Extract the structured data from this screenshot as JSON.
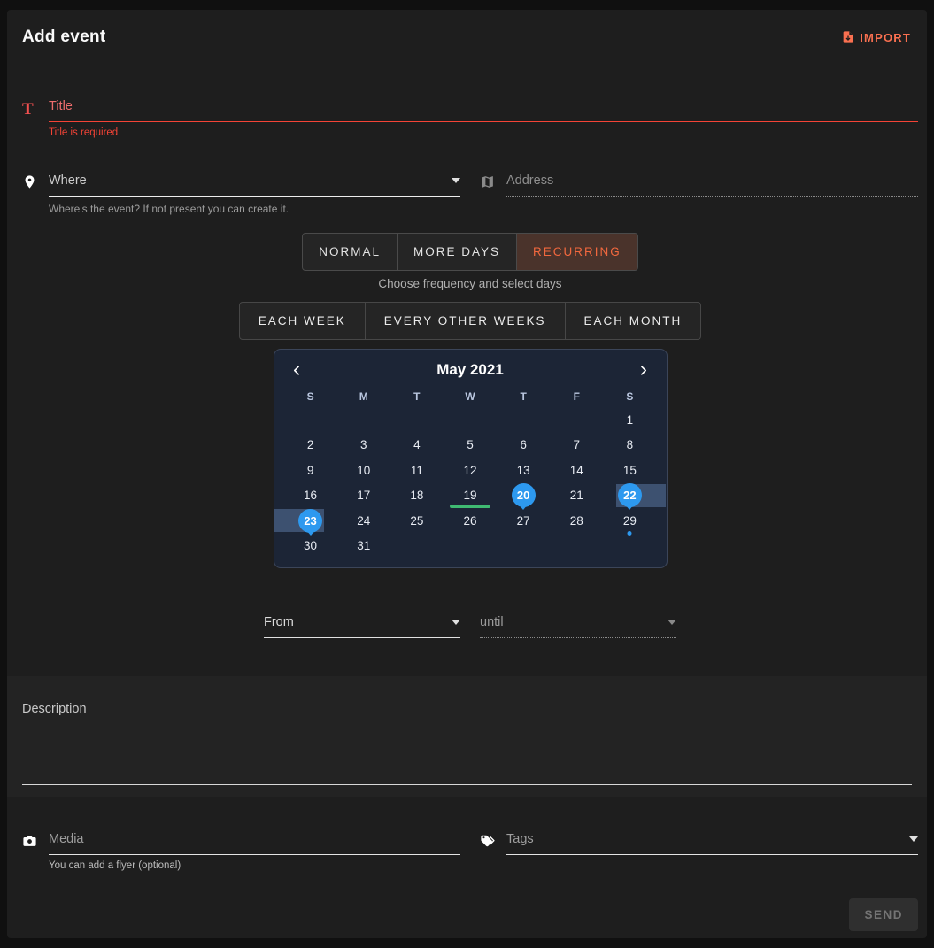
{
  "header": {
    "title": "Add event",
    "import_label": "IMPORT"
  },
  "title_field": {
    "placeholder": "Title",
    "error": "Title is required"
  },
  "where_field": {
    "placeholder": "Where",
    "helper": "Where's the event? If not present you can create it."
  },
  "address_field": {
    "placeholder": "Address"
  },
  "mode_tabs": {
    "items": [
      {
        "label": "NORMAL",
        "selected": false
      },
      {
        "label": "MORE DAYS",
        "selected": false
      },
      {
        "label": "RECURRING",
        "selected": true
      }
    ]
  },
  "frequency": {
    "caption": "Choose frequency and select days",
    "options": [
      "EACH WEEK",
      "EVERY OTHER WEEKS",
      "EACH MONTH"
    ]
  },
  "calendar": {
    "month_label": "May 2021",
    "weekdays": [
      "S",
      "M",
      "T",
      "W",
      "T",
      "F",
      "S"
    ],
    "weeks": [
      [
        {
          "d": ""
        },
        {
          "d": ""
        },
        {
          "d": ""
        },
        {
          "d": ""
        },
        {
          "d": ""
        },
        {
          "d": ""
        },
        {
          "d": "1"
        }
      ],
      [
        {
          "d": "2"
        },
        {
          "d": "3"
        },
        {
          "d": "4"
        },
        {
          "d": "5"
        },
        {
          "d": "6"
        },
        {
          "d": "7"
        },
        {
          "d": "8"
        }
      ],
      [
        {
          "d": "9"
        },
        {
          "d": "10"
        },
        {
          "d": "11"
        },
        {
          "d": "12"
        },
        {
          "d": "13"
        },
        {
          "d": "14"
        },
        {
          "d": "15"
        }
      ],
      [
        {
          "d": "16"
        },
        {
          "d": "17"
        },
        {
          "d": "18"
        },
        {
          "d": "19",
          "marker": "green-underline"
        },
        {
          "d": "20",
          "state": "selected"
        },
        {
          "d": "21"
        },
        {
          "d": "22",
          "state": "selected",
          "band": "right"
        }
      ],
      [
        {
          "d": "23",
          "state": "selected",
          "band": "left"
        },
        {
          "d": "24"
        },
        {
          "d": "25"
        },
        {
          "d": "26"
        },
        {
          "d": "27"
        },
        {
          "d": "28"
        },
        {
          "d": "29",
          "marker": "dot"
        }
      ],
      [
        {
          "d": "30"
        },
        {
          "d": "31"
        },
        {
          "d": ""
        },
        {
          "d": ""
        },
        {
          "d": ""
        },
        {
          "d": ""
        },
        {
          "d": ""
        }
      ]
    ]
  },
  "time_fields": {
    "from_placeholder": "From",
    "until_placeholder": "until"
  },
  "description_field": {
    "label": "Description"
  },
  "media_field": {
    "placeholder": "Media",
    "helper": "You can add a flyer (optional)"
  },
  "tags_field": {
    "placeholder": "Tags"
  },
  "send_button": {
    "label": "SEND"
  },
  "icons": {
    "header": "file-import-icon",
    "title": "text-format-icon",
    "where": "location-pin-icon",
    "address": "map-icon",
    "media": "camera-icon",
    "tags": "tags-icon",
    "calendar_nav": [
      "chevron-left-icon",
      "chevron-right-icon"
    ]
  },
  "colors": {
    "accent_orange": "#fa7050",
    "selected_tab_bg": "#4a332b",
    "selected_tab_text": "#f1683e",
    "error_red": "#f44336",
    "title_placeholder": "#ef6d6d",
    "selection_blue": "#2d99ef",
    "range_band": "#3d5170",
    "frequency_green": "#3fba72",
    "calendar_bg": "#1c2536",
    "calendar_border": "#3b4559",
    "card_bg": "#1e1e1e",
    "section_bg": "#232323"
  }
}
